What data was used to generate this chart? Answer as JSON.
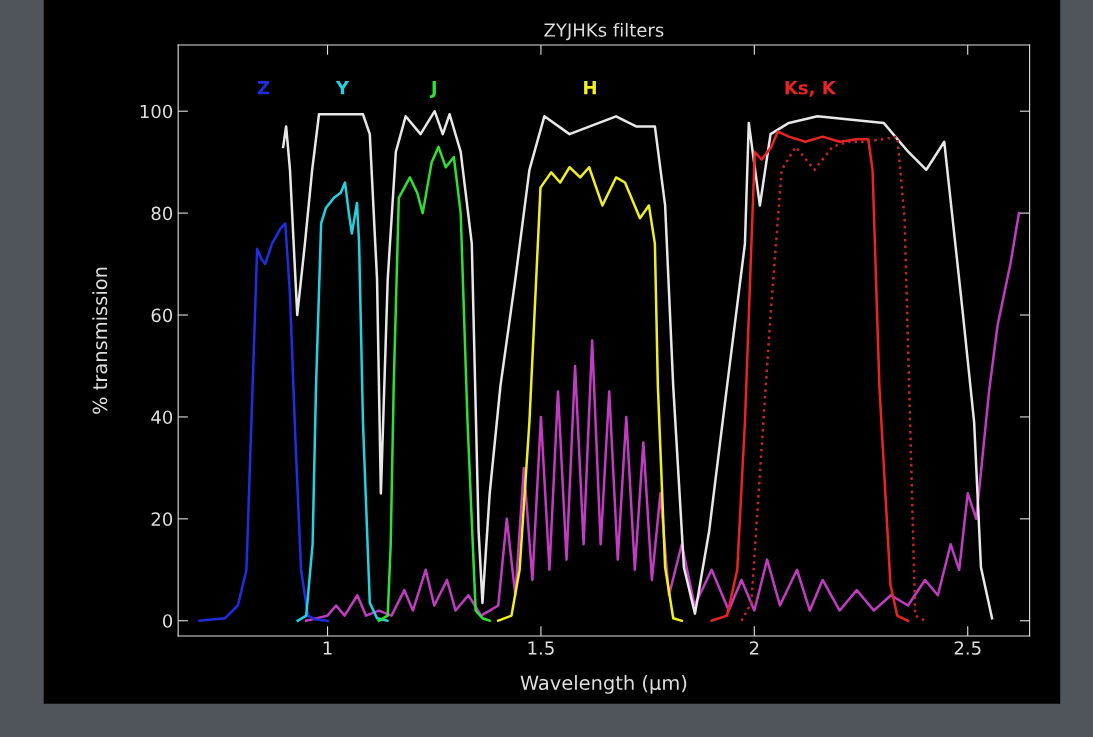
{
  "chart_data": {
    "type": "line",
    "title": "ZYJHKs filters",
    "xlabel": "Wavelength (μm)",
    "ylabel": "% transmission",
    "xlim": [
      0.65,
      2.645
    ],
    "ylim": [
      -3,
      113
    ],
    "xticks": [
      1,
      1.5,
      2,
      2.5
    ],
    "yticks": [
      0,
      20,
      40,
      60,
      80,
      100
    ],
    "grid": false,
    "legend": false,
    "marker": "none",
    "line_style": "solid",
    "series": [
      {
        "color": "#c03cc0",
        "x": [
          0.95,
          1.0,
          1.02,
          1.04,
          1.07,
          1.09,
          1.12,
          1.15,
          1.18,
          1.2,
          1.23,
          1.25,
          1.28,
          1.3,
          1.33,
          1.36,
          1.4,
          1.42,
          1.44,
          1.46,
          1.48,
          1.5,
          1.52,
          1.54,
          1.56,
          1.58,
          1.6,
          1.62,
          1.64,
          1.66,
          1.68,
          1.7,
          1.72,
          1.74,
          1.76,
          1.78,
          1.8,
          1.83,
          1.86,
          1.9,
          1.94,
          1.97,
          2.0,
          2.03,
          2.06,
          2.1,
          2.13,
          2.16,
          2.2,
          2.24,
          2.28,
          2.32,
          2.36,
          2.4,
          2.43,
          2.46,
          2.48,
          2.5,
          2.52,
          2.55,
          2.57,
          2.6,
          2.62
        ],
        "values": [
          0,
          1,
          3,
          1,
          5,
          1,
          2,
          1,
          6,
          2,
          10,
          3,
          8,
          2,
          5,
          1,
          3,
          20,
          5,
          30,
          8,
          40,
          10,
          45,
          12,
          50,
          15,
          55,
          15,
          45,
          12,
          40,
          10,
          35,
          8,
          25,
          5,
          15,
          3,
          10,
          2,
          8,
          2,
          12,
          3,
          10,
          2,
          8,
          2,
          6,
          2,
          5,
          3,
          8,
          5,
          15,
          10,
          25,
          20,
          45,
          58,
          70,
          80
        ]
      },
      {
        "color": "#e8e8e8",
        "x": [
          0.896,
          0.903,
          0.912,
          0.929,
          0.947,
          0.964,
          0.98,
          1.083,
          1.099,
          1.116,
          1.125,
          1.141,
          1.16,
          1.183,
          1.218,
          1.251,
          1.27,
          1.286,
          1.312,
          1.338,
          1.354,
          1.363,
          1.38,
          1.405,
          1.44,
          1.473,
          1.508,
          1.567,
          1.676,
          1.723,
          1.767,
          1.791,
          1.81,
          1.835,
          1.861,
          1.894,
          1.936,
          1.978,
          1.987,
          2.013,
          2.038,
          2.081,
          2.148,
          2.303,
          2.361,
          2.403,
          2.445,
          2.489,
          2.515,
          2.531,
          2.557
        ],
        "values": [
          93,
          97,
          88.5,
          60,
          74,
          88.5,
          99.4,
          99.4,
          95.5,
          67,
          25,
          67,
          92,
          99,
          95.5,
          100,
          95.5,
          99.4,
          92,
          74,
          17.5,
          3.5,
          25,
          46,
          67,
          88.5,
          99,
          95.5,
          99,
          97,
          97,
          81.5,
          46,
          10.5,
          1.4,
          17.5,
          46,
          74,
          97.7,
          81.5,
          95.5,
          97.7,
          99,
          97.7,
          92,
          88.5,
          94,
          60,
          39,
          10.5,
          0.5
        ]
      },
      {
        "name": "Z",
        "color": "#1e2ee0",
        "x": [
          0.7,
          0.76,
          0.79,
          0.81,
          0.83,
          0.835,
          0.845,
          0.854,
          0.87,
          0.89,
          0.901,
          0.912,
          0.925,
          0.938,
          0.954,
          0.97,
          1.0
        ],
        "values": [
          0,
          0.5,
          3,
          10,
          60,
          73,
          71,
          70,
          74,
          77,
          78,
          64,
          35,
          10,
          1,
          0.3,
          0
        ]
      },
      {
        "name": "Y",
        "color": "#22d2e0",
        "x": [
          0.93,
          0.95,
          0.965,
          0.973,
          0.985,
          0.996,
          1.015,
          1.031,
          1.041,
          1.05,
          1.057,
          1.065,
          1.069,
          1.074,
          1.083,
          1.099,
          1.116,
          1.14
        ],
        "values": [
          0,
          1,
          15,
          46,
          78,
          81,
          83,
          84,
          86,
          80,
          76,
          80,
          82,
          74,
          39,
          3.5,
          0.5,
          0
        ]
      },
      {
        "name": "J",
        "color": "#30e030",
        "x": [
          1.12,
          1.141,
          1.148,
          1.155,
          1.167,
          1.193,
          1.21,
          1.223,
          1.244,
          1.26,
          1.277,
          1.296,
          1.312,
          1.328,
          1.347,
          1.363,
          1.38
        ],
        "values": [
          0,
          1,
          15,
          46,
          83,
          87,
          84,
          80,
          90,
          93,
          89,
          91,
          80,
          39,
          2,
          0.5,
          0
        ]
      },
      {
        "name": "H",
        "color": "#f0f020",
        "x": [
          1.4,
          1.431,
          1.45,
          1.473,
          1.499,
          1.524,
          1.545,
          1.567,
          1.592,
          1.613,
          1.644,
          1.676,
          1.697,
          1.732,
          1.753,
          1.767,
          1.774,
          1.791,
          1.81,
          1.83
        ],
        "values": [
          0,
          1,
          10,
          39,
          85,
          88,
          86,
          89,
          87,
          89,
          81.5,
          87,
          86,
          79,
          81.5,
          74,
          46,
          10.5,
          0.5,
          0
        ]
      },
      {
        "name": "Ks, K",
        "color": "#e82424",
        "x": [
          1.9,
          1.936,
          1.96,
          1.978,
          2.001,
          2.017,
          2.04,
          2.055,
          2.081,
          2.12,
          2.16,
          2.2,
          2.24,
          2.267,
          2.277,
          2.293,
          2.319,
          2.335,
          2.36
        ],
        "values": [
          0,
          1,
          10,
          39,
          92,
          90.5,
          93,
          96,
          95,
          94,
          95,
          94,
          94.5,
          94.5,
          88.5,
          46,
          7,
          1,
          0
        ]
      },
      {
        "color": "#c02828",
        "line_style": "dotted",
        "x": [
          1.97,
          1.993,
          2.01,
          2.038,
          2.064,
          2.097,
          2.141,
          2.183,
          2.22,
          2.26,
          2.3,
          2.335,
          2.352,
          2.365,
          2.377,
          2.4
        ],
        "values": [
          0,
          3.5,
          25,
          60,
          88.5,
          93,
          88.5,
          93,
          94,
          94,
          94.5,
          95,
          79,
          39,
          1,
          0
        ]
      }
    ]
  }
}
